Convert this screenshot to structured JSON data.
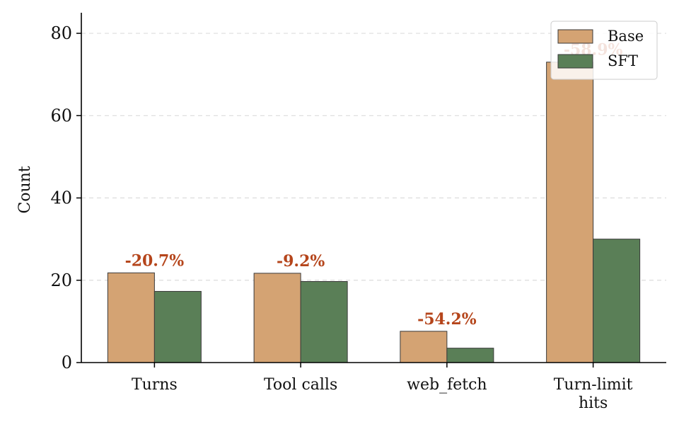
{
  "chart_data": {
    "type": "bar",
    "categories": [
      "Turns",
      "Tool calls",
      "web_fetch",
      "Turn-limit\nhits"
    ],
    "series": [
      {
        "name": "Base",
        "values": [
          21.8,
          21.7,
          7.6,
          73.0
        ],
        "color": "#d4a373"
      },
      {
        "name": "SFT",
        "values": [
          17.3,
          19.7,
          3.5,
          30.0
        ],
        "color": "#5a7f57"
      }
    ],
    "annotations": [
      "-20.7%",
      "-9.2%",
      "-54.2%",
      "-58.9%"
    ],
    "annotation_color": "#b5451b",
    "ylabel": "Count",
    "xlabel": "",
    "ylim": [
      0,
      85
    ],
    "yticks": [
      0,
      20,
      40,
      60,
      80
    ],
    "grid": "y-dashed",
    "legend_position": "top-right"
  }
}
